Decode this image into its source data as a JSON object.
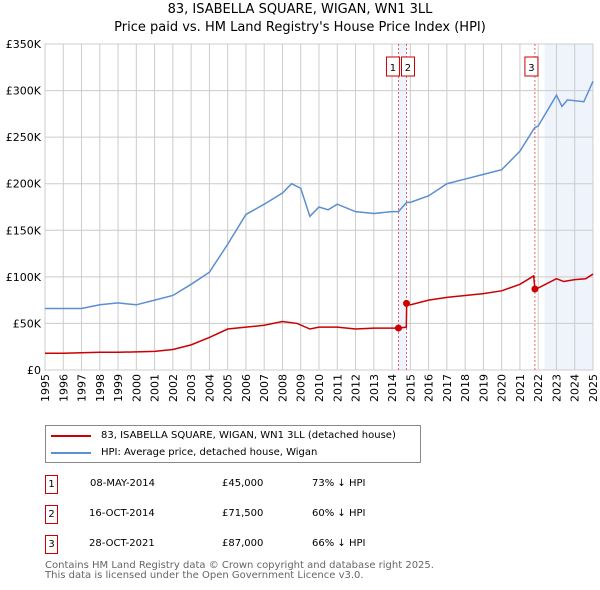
{
  "title": "83, ISABELLA SQUARE, WIGAN, WN1 3LL",
  "subtitle": "Price paid vs. HM Land Registry's House Price Index (HPI)",
  "chart_data": {
    "type": "line",
    "title": "83, ISABELLA SQUARE, WIGAN, WN1 3LL",
    "subtitle": "Price paid vs. HM Land Registry's House Price Index (HPI)",
    "xlim": [
      1995,
      2025
    ],
    "ylim": [
      0,
      350000
    ],
    "x_ticks": [
      "1995",
      "1996",
      "1997",
      "1998",
      "1999",
      "2000",
      "2001",
      "2002",
      "2003",
      "2004",
      "2005",
      "2006",
      "2007",
      "2008",
      "2009",
      "2010",
      "2011",
      "2012",
      "2013",
      "2014",
      "2015",
      "2016",
      "2017",
      "2018",
      "2019",
      "2020",
      "2021",
      "2022",
      "2023",
      "2024",
      "2025"
    ],
    "y_ticks": [
      {
        "v": 0,
        "label": "£0"
      },
      {
        "v": 50000,
        "label": "£50K"
      },
      {
        "v": 100000,
        "label": "£100K"
      },
      {
        "v": 150000,
        "label": "£150K"
      },
      {
        "v": 200000,
        "label": "£200K"
      },
      {
        "v": 250000,
        "label": "£250K"
      },
      {
        "v": 300000,
        "label": "£300K"
      },
      {
        "v": 350000,
        "label": "£350K"
      }
    ],
    "grid": true,
    "series": [
      {
        "name": "83, ISABELLA SQUARE, WIGAN, WN1 3LL (detached house)",
        "color": "#cc0000",
        "x": [
          1995,
          1996,
          1997,
          1998,
          1999,
          2000,
          2001,
          2002,
          2003,
          2004,
          2005,
          2006,
          2007,
          2008,
          2008.8,
          2009.5,
          2010,
          2011,
          2012,
          2013,
          2014.35,
          2014.78,
          2014.8,
          2015,
          2016,
          2017,
          2018,
          2019,
          2020,
          2021,
          2021.75,
          2021.82,
          2022,
          2023,
          2023.4,
          2024,
          2024.6,
          2025
        ],
        "y": [
          18000,
          18000,
          18500,
          19000,
          19000,
          19500,
          20000,
          22000,
          27000,
          35000,
          44000,
          46000,
          48000,
          52000,
          50000,
          44000,
          46000,
          46000,
          44000,
          45000,
          45000,
          46000,
          71500,
          70000,
          75000,
          78000,
          80000,
          82000,
          85000,
          92000,
          101000,
          87000,
          88000,
          98000,
          95000,
          97000,
          98000,
          103000
        ]
      },
      {
        "name": "HPI: Average price, detached house, Wigan",
        "color": "#5b8fd0",
        "x": [
          1995,
          1996,
          1997,
          1998,
          1999,
          2000,
          2001,
          2002,
          2003,
          2004,
          2005,
          2006,
          2007,
          2008,
          2008.5,
          2009,
          2009.5,
          2010,
          2010.5,
          2011,
          2012,
          2013,
          2014,
          2014.35,
          2014.8,
          2015,
          2016,
          2017,
          2018,
          2019,
          2020,
          2021,
          2021.8,
          2022,
          2023,
          2023.3,
          2023.6,
          2024.5,
          2025
        ],
        "y": [
          66000,
          66000,
          66000,
          70000,
          72000,
          70000,
          75000,
          80000,
          92000,
          105000,
          135000,
          167000,
          178000,
          190000,
          200000,
          195000,
          165000,
          175000,
          172000,
          178000,
          170000,
          168000,
          170000,
          170000,
          180000,
          180000,
          187000,
          200000,
          205000,
          210000,
          215000,
          235000,
          260000,
          262000,
          295000,
          283000,
          290000,
          288000,
          310000
        ]
      }
    ],
    "sales": [
      {
        "n": "1",
        "x": 2014.35,
        "y": 45000,
        "date": "08-MAY-2014",
        "price": "£45,000",
        "hpi": "73% ↓ HPI"
      },
      {
        "n": "2",
        "x": 2014.79,
        "y": 71500,
        "date": "16-OCT-2014",
        "price": "£71,500",
        "hpi": "60% ↓ HPI"
      },
      {
        "n": "3",
        "x": 2021.82,
        "y": 87000,
        "date": "28-OCT-2021",
        "price": "£87,000",
        "hpi": "66% ↓ HPI"
      }
    ],
    "shaded_ranges": [
      [
        2014.35,
        2014.79
      ],
      [
        2022.35,
        2025
      ]
    ],
    "legend_placement": "below"
  },
  "footer": [
    "Contains HM Land Registry data © Crown copyright and database right 2025.",
    "This data is licensed under the Open Government Licence v3.0."
  ]
}
